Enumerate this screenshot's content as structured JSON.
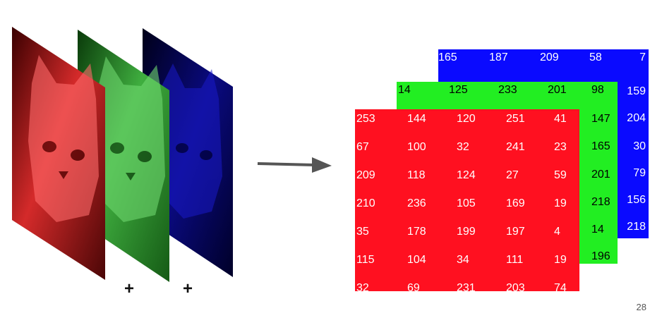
{
  "channel_layers": {
    "plus_signs": [
      "+",
      "+"
    ]
  },
  "matrices": {
    "blue": {
      "color": "#0a0aff",
      "text_color": "#ffffff",
      "rows": [
        [
          "165",
          "187",
          "209",
          "58",
          "7"
        ],
        [
          "",
          "",
          "",
          "",
          "159"
        ],
        [
          "",
          "",
          "",
          "",
          "204"
        ],
        [
          "",
          "",
          "",
          "",
          "30"
        ],
        [
          "",
          "",
          "",
          "",
          "79"
        ],
        [
          "",
          "",
          "",
          "",
          "156"
        ],
        [
          "",
          "",
          "",
          "",
          "218"
        ]
      ]
    },
    "green": {
      "color": "#22ee22",
      "text_color": "#000000",
      "rows": [
        [
          "14",
          "125",
          "233",
          "201",
          "98"
        ],
        [
          "",
          "",
          "",
          "",
          "147"
        ],
        [
          "",
          "",
          "",
          "",
          "165"
        ],
        [
          "",
          "",
          "",
          "",
          "201"
        ],
        [
          "",
          "",
          "",
          "",
          "218"
        ],
        [
          "",
          "",
          "",
          "",
          "14"
        ],
        [
          "",
          "",
          "",
          "",
          "196"
        ]
      ]
    },
    "red": {
      "color": "#ff1020",
      "text_color": "#ffffff",
      "rows": [
        [
          "253",
          "144",
          "120",
          "251",
          "41"
        ],
        [
          "67",
          "100",
          "32",
          "241",
          "23"
        ],
        [
          "209",
          "118",
          "124",
          "27",
          "59"
        ],
        [
          "210",
          "236",
          "105",
          "169",
          "19"
        ],
        [
          "35",
          "178",
          "199",
          "197",
          "4"
        ],
        [
          "115",
          "104",
          "34",
          "111",
          "19"
        ],
        [
          "32",
          "69",
          "231",
          "203",
          "74"
        ]
      ]
    }
  },
  "page_number": "28"
}
